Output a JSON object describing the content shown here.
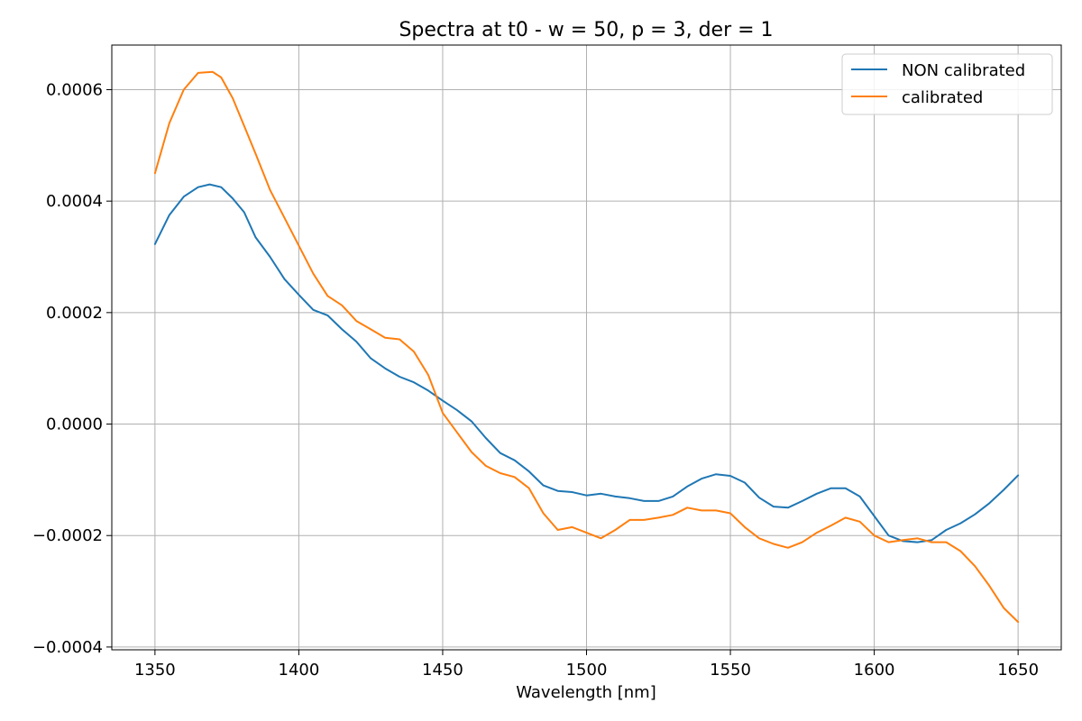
{
  "chart_data": {
    "type": "line",
    "title": "Spectra at t0 - w = 50, p = 3, der = 1",
    "xlabel": "Wavelength [nm]",
    "ylabel": "",
    "xlim": [
      1335,
      1665
    ],
    "ylim": [
      -0.000405,
      0.00068
    ],
    "x_ticks": [
      1350,
      1400,
      1450,
      1500,
      1550,
      1600,
      1650
    ],
    "x_tick_labels": [
      "1350",
      "1400",
      "1450",
      "1500",
      "1550",
      "1600",
      "1650"
    ],
    "y_ticks": [
      -0.0004,
      -0.0002,
      0.0,
      0.0002,
      0.0004,
      0.0006
    ],
    "y_tick_labels": [
      "−0.0004",
      "−0.0002",
      "0.0000",
      "0.0002",
      "0.0004",
      "0.0006"
    ],
    "grid": true,
    "legend_position": "top-right",
    "series": [
      {
        "name": "NON calibrated",
        "color": "#1f77b4",
        "x": [
          1350,
          1355,
          1360,
          1365,
          1369,
          1373,
          1377,
          1381,
          1385,
          1390,
          1395,
          1400,
          1405,
          1410,
          1415,
          1420,
          1425,
          1430,
          1435,
          1440,
          1445,
          1450,
          1455,
          1460,
          1465,
          1470,
          1475,
          1480,
          1485,
          1490,
          1495,
          1500,
          1505,
          1510,
          1515,
          1520,
          1525,
          1530,
          1535,
          1540,
          1545,
          1550,
          1555,
          1560,
          1565,
          1570,
          1575,
          1580,
          1585,
          1590,
          1595,
          1600,
          1605,
          1610,
          1615,
          1620,
          1625,
          1630,
          1635,
          1640,
          1645,
          1650
        ],
        "y": [
          0.000323,
          0.000375,
          0.000408,
          0.000425,
          0.00043,
          0.000425,
          0.000405,
          0.00038,
          0.000335,
          0.0003,
          0.00026,
          0.000232,
          0.000205,
          0.000195,
          0.00017,
          0.000148,
          0.000118,
          0.0001,
          8.5e-05,
          7.5e-05,
          6e-05,
          4.2e-05,
          2.5e-05,
          5e-06,
          -2.5e-05,
          -5.2e-05,
          -6.5e-05,
          -8.5e-05,
          -0.00011,
          -0.00012,
          -0.000122,
          -0.000128,
          -0.000125,
          -0.00013,
          -0.000133,
          -0.000138,
          -0.000138,
          -0.00013,
          -0.000112,
          -9.8e-05,
          -9e-05,
          -9.3e-05,
          -0.000105,
          -0.000132,
          -0.000148,
          -0.00015,
          -0.000138,
          -0.000125,
          -0.000115,
          -0.000115,
          -0.00013,
          -0.000165,
          -0.0002,
          -0.00021,
          -0.000212,
          -0.000208,
          -0.00019,
          -0.000178,
          -0.000162,
          -0.000142,
          -0.000118,
          -9.2e-05
        ]
      },
      {
        "name": "calibrated",
        "color": "#ff7f0e",
        "x": [
          1350,
          1355,
          1360,
          1365,
          1370,
          1373,
          1377,
          1381,
          1385,
          1390,
          1395,
          1400,
          1405,
          1410,
          1415,
          1420,
          1425,
          1430,
          1435,
          1440,
          1445,
          1450,
          1455,
          1460,
          1465,
          1470,
          1475,
          1480,
          1485,
          1490,
          1495,
          1500,
          1505,
          1510,
          1515,
          1520,
          1525,
          1530,
          1535,
          1540,
          1545,
          1550,
          1555,
          1560,
          1565,
          1570,
          1575,
          1580,
          1585,
          1590,
          1595,
          1600,
          1605,
          1610,
          1615,
          1620,
          1625,
          1630,
          1635,
          1640,
          1645,
          1650
        ],
        "y": [
          0.00045,
          0.00054,
          0.0006,
          0.00063,
          0.000632,
          0.000622,
          0.000585,
          0.000535,
          0.000485,
          0.00042,
          0.00037,
          0.00032,
          0.00027,
          0.00023,
          0.000213,
          0.000185,
          0.00017,
          0.000155,
          0.000152,
          0.00013,
          8.8e-05,
          2e-05,
          -1.5e-05,
          -5e-05,
          -7.5e-05,
          -8.8e-05,
          -9.5e-05,
          -0.000115,
          -0.00016,
          -0.00019,
          -0.000185,
          -0.000195,
          -0.000205,
          -0.00019,
          -0.000172,
          -0.000172,
          -0.000168,
          -0.000163,
          -0.00015,
          -0.000155,
          -0.000155,
          -0.00016,
          -0.000185,
          -0.000205,
          -0.000215,
          -0.000222,
          -0.000212,
          -0.000195,
          -0.000182,
          -0.000168,
          -0.000175,
          -0.0002,
          -0.000212,
          -0.000208,
          -0.000205,
          -0.000212,
          -0.000212,
          -0.000228,
          -0.000255,
          -0.00029,
          -0.00033,
          -0.000355
        ]
      }
    ]
  }
}
